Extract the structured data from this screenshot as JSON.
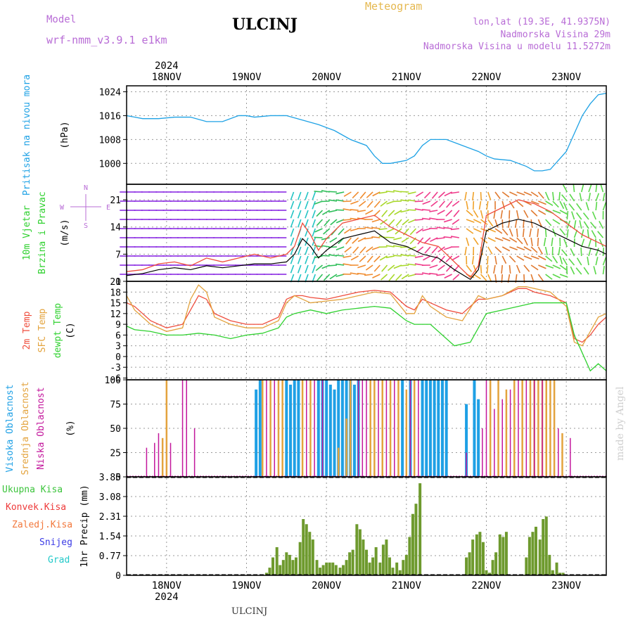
{
  "header": {
    "model_label": "Model",
    "model_name": "wrf-nmm_v3.9.1 e1km",
    "station": "ULCINJ",
    "product": "Meteogram",
    "lonlat": "lon,lat (19.3E, 41.9375N)",
    "altitude": "Nadmorska Visina 29m",
    "model_altitude": "Nadmorska Visina u modelu 11.5272m"
  },
  "footer_station": "ULCINJ",
  "watermark": "made by Angel",
  "colors": {
    "pressure": "#1fa2e5",
    "t2m": "#ef4d3d",
    "sfc_temp": "#e3a33d",
    "dewpoint": "#2fd12f",
    "high_cloud": "#1ea0e5",
    "mid_cloud": "#e3a33d",
    "low_cloud": "#c3179c",
    "precip_total": "#3cc43c",
    "precip_conv": "#ee3a3a",
    "precip_frozen": "#f2783c",
    "snow": "#3b3be6",
    "graupel": "#22c9c9",
    "wind_speed": "#000000",
    "gust": "#ef4d3d"
  },
  "chart_data": [
    {
      "type": "line",
      "panel": "pressure",
      "ylabel_main": "Pritisak na nivou mora",
      "ylabel_unit": "(hPa)",
      "ylim": [
        993,
        1026
      ],
      "yticks": [
        "1024",
        "1016",
        "1008",
        "1000"
      ],
      "x_days": [
        "18NOV",
        "19NOV",
        "20NOV",
        "21NOV",
        "22NOV",
        "23NOV"
      ],
      "year": "2024",
      "x_range_days": [
        17.5,
        23.5
      ],
      "series": [
        {
          "x": [
            17.5,
            17.6,
            17.7,
            17.9,
            18.1,
            18.3,
            18.5,
            18.7,
            18.9,
            19.0,
            19.1,
            19.3,
            19.5,
            19.7,
            19.9,
            20.1,
            20.3,
            20.5,
            20.6,
            20.7,
            20.8,
            20.9,
            21.0,
            21.1,
            21.2,
            21.3,
            21.4,
            21.5,
            21.7,
            21.8,
            21.9,
            22.0,
            22.1,
            22.3,
            22.5,
            22.6,
            22.7,
            22.8,
            22.9,
            23.0,
            23.1,
            23.2,
            23.3,
            23.4,
            23.5
          ],
          "y": [
            1016,
            1015.5,
            1015,
            1015,
            1015.5,
            1015.5,
            1014,
            1014,
            1016,
            1016,
            1015.5,
            1016,
            1016,
            1014.5,
            1013,
            1011,
            1008,
            1006,
            1002.5,
            1000,
            1000,
            1000.5,
            1001,
            1002.5,
            1006,
            1008,
            1008,
            1008,
            1006,
            1005,
            1004,
            1002.5,
            1001.5,
            1001,
            999,
            997.5,
            997.5,
            998,
            1001,
            1004,
            1010,
            1016,
            1020,
            1023,
            1023.5
          ]
        }
      ]
    },
    {
      "type": "line",
      "panel": "wind",
      "ylabel_main": "10m Vjetar",
      "ylabel_sub": "Brzina i Pravac",
      "ylabel_unit": "(m/s)",
      "compass": [
        "N",
        "W",
        "E",
        "S"
      ],
      "ylim": [
        0,
        25
      ],
      "yticks": [
        "21",
        "14",
        "7",
        "0"
      ],
      "series": [
        {
          "x": [
            17.5,
            17.7,
            17.9,
            18.1,
            18.3,
            18.5,
            18.7,
            18.9,
            19.1,
            19.3,
            19.5,
            19.6,
            19.7,
            19.8,
            19.9,
            20.0,
            20.2,
            20.4,
            20.6,
            20.8,
            21.0,
            21.2,
            21.4,
            21.6,
            21.8,
            21.9,
            22.0,
            22.2,
            22.4,
            22.6,
            22.8,
            23.0,
            23.2,
            23.4,
            23.5
          ],
          "y": [
            1.5,
            2,
            3,
            3.5,
            3,
            4,
            3.5,
            4,
            4.5,
            4.5,
            5,
            7,
            11,
            9,
            6,
            8,
            11,
            12,
            13,
            10,
            9,
            7,
            6,
            3,
            0.5,
            3,
            13,
            15,
            16,
            15,
            13,
            11,
            9,
            8,
            7
          ]
        },
        {
          "x": [
            17.5,
            17.7,
            17.9,
            18.1,
            18.3,
            18.5,
            18.7,
            18.9,
            19.1,
            19.3,
            19.5,
            19.6,
            19.7,
            19.8,
            19.9,
            20.0,
            20.2,
            20.4,
            20.6,
            20.8,
            21.0,
            21.2,
            21.4,
            21.6,
            21.8,
            21.9,
            22.0,
            22.2,
            22.4,
            22.6,
            22.8,
            23.0,
            23.2,
            23.4,
            23.5
          ],
          "y": [
            2.5,
            3,
            4.5,
            5,
            4,
            6,
            5,
            6,
            7,
            6,
            7,
            9,
            15,
            12,
            8,
            11,
            15,
            16,
            17,
            14,
            12,
            10,
            9,
            5,
            1,
            4,
            17,
            19,
            21,
            20,
            18,
            15,
            12,
            10,
            9
          ]
        }
      ]
    },
    {
      "type": "line",
      "panel": "temperature",
      "ylabel_lines": [
        "2m Temp",
        "SFC Temp",
        "dewpt Temp"
      ],
      "ylabel_unit": "(C)",
      "ylim": [
        -6.5,
        21
      ],
      "yticks": [
        "21",
        "18",
        "15",
        "12",
        "9",
        "6",
        "3",
        "0",
        "-3",
        "-6"
      ],
      "series": [
        {
          "name": "2m Temp",
          "x": [
            17.5,
            17.6,
            17.7,
            17.8,
            18.0,
            18.2,
            18.3,
            18.4,
            18.5,
            18.6,
            18.8,
            19.0,
            19.2,
            19.4,
            19.5,
            19.6,
            19.7,
            19.8,
            20.0,
            20.2,
            20.4,
            20.6,
            20.8,
            21.0,
            21.1,
            21.2,
            21.3,
            21.5,
            21.7,
            21.9,
            22.0,
            22.2,
            22.4,
            22.5,
            22.6,
            22.8,
            23.0,
            23.1,
            23.2,
            23.3,
            23.4,
            23.5
          ],
          "y": [
            15,
            14,
            12,
            10,
            8,
            9,
            13,
            17,
            16,
            12,
            10,
            9,
            9,
            11,
            16,
            17,
            17,
            16.5,
            16,
            17,
            18,
            18.5,
            18,
            14,
            13,
            16,
            15,
            13,
            12,
            16,
            16,
            17,
            19,
            19,
            18,
            17,
            15,
            5,
            4,
            6,
            9,
            11
          ]
        },
        {
          "name": "SFC Temp",
          "x": [
            17.5,
            17.6,
            17.7,
            17.8,
            18.0,
            18.2,
            18.3,
            18.4,
            18.5,
            18.6,
            18.8,
            19.0,
            19.2,
            19.4,
            19.5,
            19.6,
            19.7,
            19.8,
            20.0,
            20.2,
            20.4,
            20.6,
            20.8,
            21.0,
            21.1,
            21.2,
            21.3,
            21.5,
            21.7,
            21.9,
            22.0,
            22.2,
            22.4,
            22.5,
            22.6,
            22.8,
            23.0,
            23.1,
            23.2,
            23.3,
            23.4,
            23.5
          ],
          "y": [
            17,
            13,
            11,
            9,
            7,
            8,
            16,
            20,
            18,
            11,
            9,
            8,
            8,
            10,
            15,
            17,
            16,
            15,
            15.5,
            16,
            17,
            18,
            17.5,
            12,
            12,
            17,
            14,
            11,
            10,
            17,
            16,
            17,
            19.5,
            19.5,
            19,
            18,
            14,
            4,
            3,
            7,
            11,
            12
          ]
        },
        {
          "name": "dewpt Temp",
          "x": [
            17.5,
            17.6,
            17.8,
            18.0,
            18.2,
            18.4,
            18.6,
            18.8,
            19.0,
            19.2,
            19.4,
            19.5,
            19.6,
            19.8,
            20.0,
            20.2,
            20.4,
            20.6,
            20.8,
            21.0,
            21.1,
            21.3,
            21.5,
            21.6,
            21.8,
            21.9,
            22.0,
            22.2,
            22.4,
            22.6,
            22.8,
            23.0,
            23.1,
            23.2,
            23.3,
            23.4,
            23.5
          ],
          "y": [
            8.5,
            7.5,
            7,
            6,
            6,
            6.5,
            6,
            5,
            6,
            6.5,
            8,
            11,
            12,
            13,
            12,
            13,
            13.5,
            14,
            13.5,
            10,
            9,
            9,
            5,
            3,
            4,
            8,
            12,
            13,
            14,
            15,
            15,
            15,
            6,
            1,
            -4,
            -2,
            -4
          ]
        }
      ]
    },
    {
      "type": "bar",
      "panel": "clouds",
      "ylabel_lines": [
        "Visoka Oblacnost",
        "Srednja Oblacnost",
        "Niska Oblacnost"
      ],
      "ylabel_unit": "(%)",
      "ylim": [
        0,
        100
      ],
      "yticks": [
        "100",
        "75",
        "50",
        "25",
        "0"
      ],
      "series": [
        {
          "name": "Visoka Oblacnost",
          "x": [
            19.12,
            19.17,
            19.5,
            19.55,
            19.6,
            19.65,
            19.9,
            19.95,
            20.0,
            20.05,
            20.1,
            20.15,
            20.2,
            20.25,
            20.3,
            20.35,
            20.4,
            20.95,
            21.05,
            21.2,
            21.25,
            21.3,
            21.35,
            21.4,
            21.45,
            21.5,
            21.75,
            21.85,
            21.9
          ],
          "y": [
            90,
            100,
            100,
            95,
            100,
            100,
            100,
            100,
            100,
            95,
            90,
            100,
            100,
            100,
            100,
            95,
            100,
            100,
            100,
            100,
            100,
            100,
            100,
            100,
            100,
            100,
            75,
            100,
            80
          ]
        },
        {
          "name": "Srednja Oblacnost",
          "x": [
            17.95,
            18.0,
            19.2,
            19.3,
            19.4,
            19.45,
            19.7,
            19.8,
            20.15,
            20.25,
            20.3,
            20.55,
            20.6,
            20.7,
            20.8,
            20.9,
            21.0,
            21.1,
            22.05,
            22.15,
            22.25,
            22.35,
            22.45,
            22.55,
            22.6,
            22.65,
            22.7,
            22.75,
            22.8,
            22.85,
            22.95
          ],
          "y": [
            40,
            100,
            100,
            100,
            100,
            100,
            100,
            100,
            30,
            60,
            100,
            100,
            100,
            100,
            100,
            100,
            90,
            100,
            100,
            100,
            90,
            100,
            100,
            100,
            100,
            100,
            100,
            100,
            100,
            100,
            45
          ]
        },
        {
          "name": "Niska Oblacnost",
          "x": [
            17.75,
            17.85,
            17.9,
            18.05,
            18.2,
            18.25,
            18.35,
            19.25,
            19.35,
            19.75,
            19.85,
            19.95,
            20.4,
            20.45,
            20.5,
            20.65,
            20.75,
            20.85,
            21.05,
            21.15,
            21.75,
            21.95,
            22.0,
            22.1,
            22.2,
            22.3,
            22.4,
            22.5,
            22.6,
            22.7,
            22.9,
            23.05
          ],
          "y": [
            30,
            35,
            45,
            35,
            100,
            100,
            50,
            100,
            100,
            100,
            100,
            100,
            100,
            100,
            100,
            100,
            100,
            100,
            100,
            100,
            25,
            50,
            100,
            70,
            80,
            90,
            100,
            100,
            100,
            100,
            50,
            40
          ]
        }
      ]
    },
    {
      "type": "bar",
      "panel": "precip",
      "ylabel_main": "1hr Precip (mm)",
      "legend": [
        "Ukupna Kisa",
        "Konvek.Kisa",
        "Zaledj.Kisa",
        "Snijeg",
        "Grad"
      ],
      "ylim": [
        0,
        3.85
      ],
      "yticks": [
        "3.85",
        "3.08",
        "2.31",
        "1.54",
        "0.77",
        "0"
      ],
      "series": [
        {
          "name": "Ukupna Kisa",
          "x": [
            19.25,
            19.29,
            19.33,
            19.38,
            19.42,
            19.46,
            19.5,
            19.54,
            19.58,
            19.62,
            19.67,
            19.71,
            19.75,
            19.79,
            19.83,
            19.88,
            19.92,
            19.96,
            20.0,
            20.04,
            20.08,
            20.12,
            20.17,
            20.21,
            20.25,
            20.29,
            20.33,
            20.38,
            20.42,
            20.46,
            20.5,
            20.54,
            20.58,
            20.62,
            20.67,
            20.71,
            20.75,
            20.79,
            20.83,
            20.88,
            20.92,
            20.96,
            21.0,
            21.04,
            21.08,
            21.12,
            21.17,
            21.75,
            21.79,
            21.83,
            21.88,
            21.92,
            21.96,
            22.0,
            22.04,
            22.08,
            22.12,
            22.17,
            22.21,
            22.25,
            22.5,
            22.54,
            22.58,
            22.62,
            22.67,
            22.71,
            22.75,
            22.79,
            22.83,
            22.88,
            22.92,
            22.96
          ],
          "y": [
            0.1,
            0.3,
            0.7,
            1.1,
            0.4,
            0.6,
            0.9,
            0.8,
            0.6,
            0.7,
            1.3,
            2.2,
            2.0,
            1.7,
            1.4,
            0.6,
            0.3,
            0.4,
            0.5,
            0.5,
            0.5,
            0.4,
            0.3,
            0.4,
            0.6,
            0.9,
            1.0,
            2.0,
            1.8,
            1.4,
            1.0,
            0.5,
            0.7,
            1.1,
            0.5,
            1.2,
            1.4,
            0.7,
            0.3,
            0.5,
            0.2,
            0.6,
            0.8,
            1.5,
            2.4,
            2.8,
            3.6,
            0.7,
            0.9,
            1.4,
            1.6,
            1.7,
            1.3,
            0.2,
            0.1,
            0.6,
            0.9,
            1.6,
            1.5,
            1.7,
            0.7,
            1.5,
            1.7,
            1.9,
            1.4,
            2.2,
            2.3,
            0.8,
            0.2,
            0.5,
            0.1,
            0.1
          ]
        }
      ]
    }
  ]
}
